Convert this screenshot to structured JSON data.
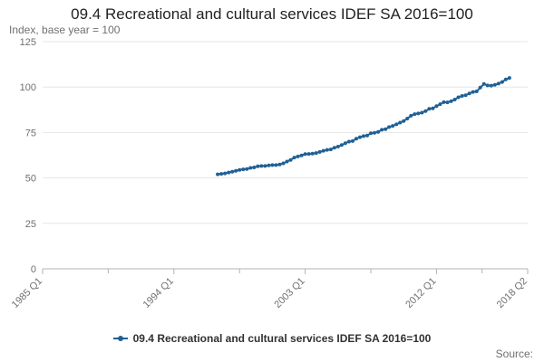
{
  "chart_data": {
    "type": "line",
    "title": "09.4 Recreational and cultural services IDEF SA 2016=100",
    "subtitle": "Index, base year = 100",
    "xlabel": "",
    "ylabel": "",
    "x_ticks": [
      "1985 Q1",
      "1994 Q1",
      "2003 Q1",
      "2012 Q1",
      "2018 Q2"
    ],
    "y_ticks": [
      0,
      25,
      50,
      75,
      100,
      125
    ],
    "ylim": [
      0,
      125
    ],
    "xlim": [
      "1985 Q1",
      "2018 Q2"
    ],
    "grid": true,
    "legend_position": "bottom",
    "series": [
      {
        "name": "09.4 Recreational and cultural services IDEF SA 2016=100",
        "color": "#206095",
        "start": "1997 Q1",
        "values": [
          52.0,
          52.2,
          52.5,
          53.0,
          53.4,
          53.9,
          54.4,
          54.7,
          54.9,
          55.5,
          55.8,
          56.4,
          56.6,
          56.6,
          56.9,
          57.1,
          57.1,
          57.4,
          58.0,
          59.0,
          59.9,
          61.2,
          61.8,
          62.4,
          63.1,
          63.2,
          63.4,
          63.7,
          64.3,
          64.9,
          65.4,
          65.7,
          66.6,
          67.2,
          68.1,
          69.1,
          70.0,
          70.3,
          71.6,
          72.4,
          73.0,
          73.3,
          74.6,
          74.8,
          75.3,
          76.5,
          76.8,
          78.0,
          78.6,
          79.5,
          80.4,
          81.3,
          82.7,
          84.2,
          85.1,
          85.5,
          85.9,
          86.8,
          88.0,
          88.3,
          89.5,
          90.6,
          91.7,
          91.6,
          92.2,
          93.1,
          94.4,
          95.1,
          95.5,
          96.5,
          97.3,
          97.6,
          99.7,
          101.7,
          100.9,
          100.8,
          101.2,
          101.9,
          102.8,
          104.2,
          105.0
        ]
      }
    ]
  },
  "legend": {
    "label": "09.4 Recreational and cultural services IDEF SA 2016=100"
  },
  "source_label": "Source:"
}
